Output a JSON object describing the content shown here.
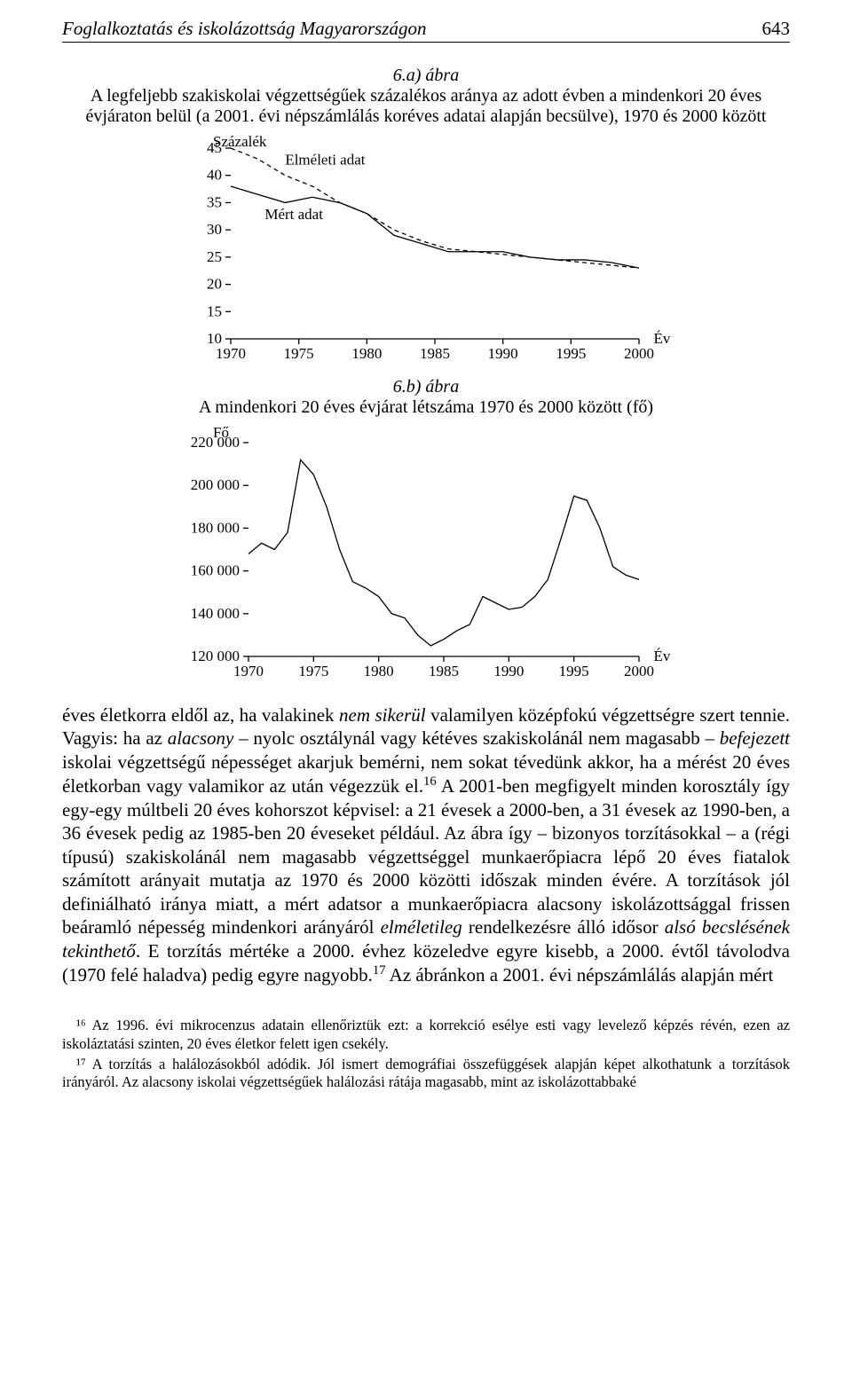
{
  "header": {
    "title": "Foglalkoztatás és iskolázottság Magyarországon",
    "page_number": "643"
  },
  "figA": {
    "number": "6.a) ábra",
    "caption": "A legfeljebb szakiskolai végzettségűek százalékos aránya az adott évben a mindenkori 20 éves évjáraton belül (a 2001. évi népszámlálás koréves adatai alapján becsülve), 1970 és 2000 között",
    "type": "line",
    "y_label": "Százalék",
    "x_axis_label": "Év",
    "series_labels": {
      "theoretical": "Elméleti adat",
      "measured": "Mért adat"
    },
    "x_ticks": [
      1970,
      1975,
      1980,
      1985,
      1990,
      1995,
      2000
    ],
    "y_ticks": [
      10,
      15,
      20,
      25,
      30,
      35,
      40,
      45
    ],
    "ylim": [
      10,
      45
    ],
    "colors": {
      "line": "#000000",
      "axis": "#000000",
      "background": "#ffffff"
    },
    "line_width": 1.3,
    "dash_pattern": "5,4",
    "label_fontsize": 17,
    "tick_fontsize": 17,
    "theoretical": {
      "x": [
        1970,
        1972,
        1974,
        1976,
        1978,
        1980,
        1982,
        1984,
        1986,
        1988,
        1990,
        1992,
        1994,
        1996,
        1998,
        2000
      ],
      "y": [
        45,
        43,
        40,
        38,
        35,
        33,
        30,
        28,
        26.5,
        26,
        25.5,
        25,
        24.5,
        24,
        23.5,
        23
      ]
    },
    "measured": {
      "x": [
        1970,
        1972,
        1974,
        1976,
        1978,
        1980,
        1982,
        1984,
        1986,
        1988,
        1990,
        1992,
        1994,
        1996,
        1998,
        2000
      ],
      "y": [
        38,
        36.5,
        35,
        36,
        35,
        33,
        29,
        27.5,
        26,
        26,
        26,
        25,
        24.5,
        24.5,
        24,
        23
      ]
    }
  },
  "figB": {
    "number": "6.b) ábra",
    "caption": "A mindenkori 20 éves évjárat létszáma 1970 és 2000 között (fő)",
    "type": "line",
    "y_label": "Fő",
    "x_axis_label": "Év",
    "x_ticks": [
      1970,
      1975,
      1980,
      1985,
      1990,
      1995,
      2000
    ],
    "y_ticks": [
      120000,
      140000,
      160000,
      180000,
      200000,
      220000
    ],
    "y_tick_labels": [
      "120 000",
      "140 000",
      "160 000",
      "180 000",
      "200 000",
      "220 000"
    ],
    "ylim": [
      120000,
      220000
    ],
    "colors": {
      "line": "#000000",
      "axis": "#000000",
      "background": "#ffffff"
    },
    "line_width": 1.3,
    "label_fontsize": 17,
    "tick_fontsize": 17,
    "series": {
      "x": [
        1970,
        1971,
        1972,
        1973,
        1974,
        1975,
        1976,
        1977,
        1978,
        1979,
        1980,
        1981,
        1982,
        1983,
        1984,
        1985,
        1986,
        1987,
        1988,
        1989,
        1990,
        1991,
        1992,
        1993,
        1994,
        1995,
        1996,
        1997,
        1998,
        1999,
        2000
      ],
      "y": [
        168000,
        173000,
        170000,
        178000,
        212000,
        205000,
        190000,
        170000,
        155000,
        152000,
        148000,
        140000,
        138000,
        130000,
        125000,
        128000,
        132000,
        135000,
        148000,
        145000,
        142000,
        143000,
        148000,
        156000,
        175000,
        195000,
        193000,
        180000,
        162000,
        158000,
        156000
      ]
    }
  },
  "paragraph": "éves életkorra eldől az, ha valakinek nem sikerül valamilyen középfokú végzettségre szert tennie. Vagyis: ha az alacsony – nyolc osztálynál vagy kétéves szakiskolánál nem magasabb – befejezett iskolai végzettségű népességet akarjuk bemérni, nem sokat tévedünk akkor, ha a mérést 20 éves életkorban vagy valamikor az után végezzük el.¹⁶ A 2001-ben megfigyelt minden korosztály így egy-egy múltbeli 20 éves kohorszot képvisel: a 21 évesek a 2000-ben, a 31 évesek az 1990-ben, a 36 évesek pedig az 1985-ben 20 éveseket például. Az ábra így – bizonyos torzításokkal – a (régi típusú) szakiskolánál nem magasabb végzettséggel munkaerőpiacra lépő 20 éves fiatalok számított arányait mutatja az 1970 és 2000 közötti időszak minden évére. A torzítások jól definiálható iránya miatt, a mért adatsor a munkaerőpiacra alacsony iskolázottsággal frissen beáramló népesség mindenkori arányáról elméletileg rendelkezésre álló idősor alsó becslésének tekinthető. E torzítás mértéke a 2000. évhez közeledve egyre kisebb, a 2000. évtől távolodva (1970 felé haladva) pedig egyre nagyobb.¹⁷ Az ábránkon a 2001. évi népszámlálás alapján mért",
  "footnotes": {
    "n16": "¹⁶ Az 1996. évi mikrocenzus adatain ellenőriztük ezt: a korrekció esélye esti vagy levelező képzés révén, ezen az iskoláztatási szinten, 20 éves életkor felett igen csekély.",
    "n17": "¹⁷ A torzítás a halálozásokból adódik. Jól ismert demográfiai összefüggések alapján képet alkothatunk a torzítások irányáról. Az alacsony iskolai végzettségűek halálozási rátája magasabb, mint az iskolázottabbaké"
  }
}
